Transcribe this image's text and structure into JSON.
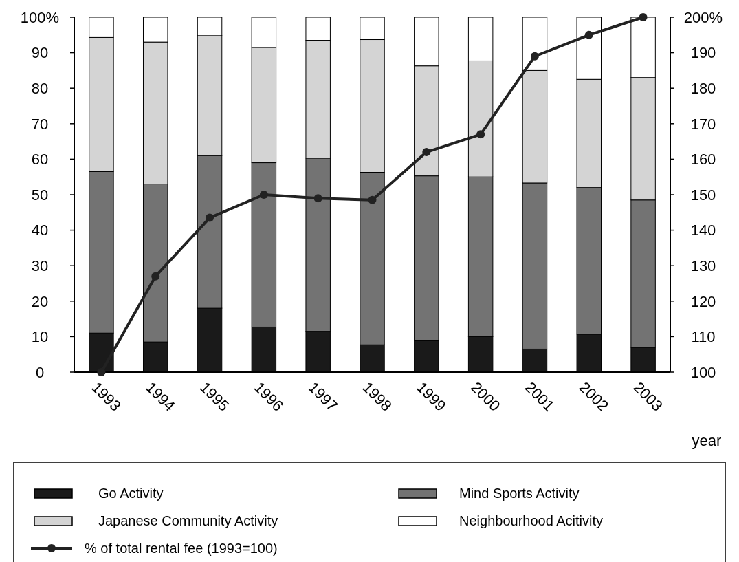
{
  "chart_data": {
    "type": "bar",
    "stacked": true,
    "categories": [
      "1993",
      "1994",
      "1995",
      "1996",
      "1997",
      "1998",
      "1999",
      "2000",
      "2001",
      "2002",
      "2003"
    ],
    "xlabel": "year",
    "series": [
      {
        "name": "Go Activity",
        "color": "#1a1a1a",
        "values": [
          11,
          8.5,
          18,
          12.7,
          11.5,
          7.7,
          9,
          10,
          6.5,
          10.7,
          7
        ]
      },
      {
        "name": "Mind Sports Activity",
        "color": "#737373",
        "values": [
          45.5,
          44.5,
          43,
          46.3,
          48.8,
          48.6,
          46.3,
          45,
          46.8,
          41.3,
          41.5
        ]
      },
      {
        "name": "Japanese Community Activity",
        "color": "#d4d4d4",
        "values": [
          37.8,
          40,
          33.8,
          32.5,
          33.2,
          37.4,
          31,
          32.7,
          31.7,
          30.5,
          34.5
        ]
      },
      {
        "name": "Neighbourhood Acitivity",
        "color": "#ffffff",
        "values": [
          5.7,
          7,
          5.2,
          8.5,
          6.5,
          6.3,
          13.7,
          12.3,
          15,
          17.5,
          17
        ]
      },
      {
        "name": "% of total rental fee (1993=100)",
        "type": "line",
        "axis": "y2",
        "color": "#222222",
        "marker": "circle",
        "values": [
          100,
          127,
          143.5,
          150,
          149,
          148.5,
          162,
          167,
          189,
          195,
          200
        ]
      }
    ],
    "ylim": [
      0,
      100
    ],
    "yticks": [
      0,
      10,
      20,
      30,
      40,
      50,
      60,
      70,
      80,
      90,
      {
        "value": 100,
        "label": "100%"
      }
    ],
    "y2lim": [
      100,
      200
    ],
    "y2ticks": [
      100,
      110,
      120,
      130,
      140,
      150,
      160,
      170,
      180,
      190,
      {
        "value": 200,
        "label": "200%"
      }
    ],
    "legend": "bottom",
    "grid": false
  }
}
